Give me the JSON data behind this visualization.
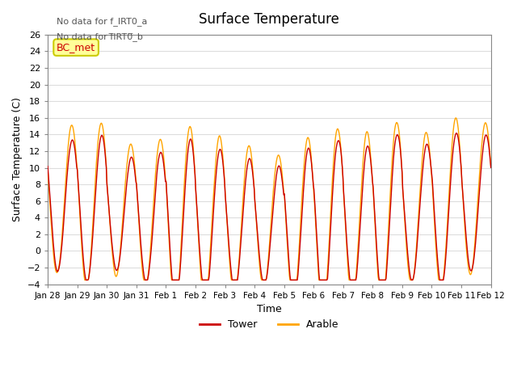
{
  "title": "Surface Temperature",
  "xlabel": "Time",
  "ylabel": "Surface Temperature (C)",
  "ylim": [
    -4,
    26
  ],
  "yticks": [
    -4,
    -2,
    0,
    2,
    4,
    6,
    8,
    10,
    12,
    14,
    16,
    18,
    20,
    22,
    24,
    26
  ],
  "xtick_labels": [
    "Jan 28",
    "Jan 29",
    "Jan 30",
    "Jan 31",
    "Feb 1",
    "Feb 2",
    "Feb 3",
    "Feb 4",
    "Feb 5",
    "Feb 6",
    "Feb 7",
    "Feb 8",
    "Feb 9",
    "Feb 10",
    "Feb 11",
    "Feb 12"
  ],
  "tower_color": "#cc0000",
  "arable_color": "#ffa500",
  "annotation_text1": "No data for f_IRT0_a",
  "annotation_text2": "No data for f̅IRT0̅_b",
  "bc_met_label": "BC_met",
  "legend_tower": "Tower",
  "legend_arable": "Arable",
  "background_color": "#ffffff",
  "grid_color": "#dddddd"
}
